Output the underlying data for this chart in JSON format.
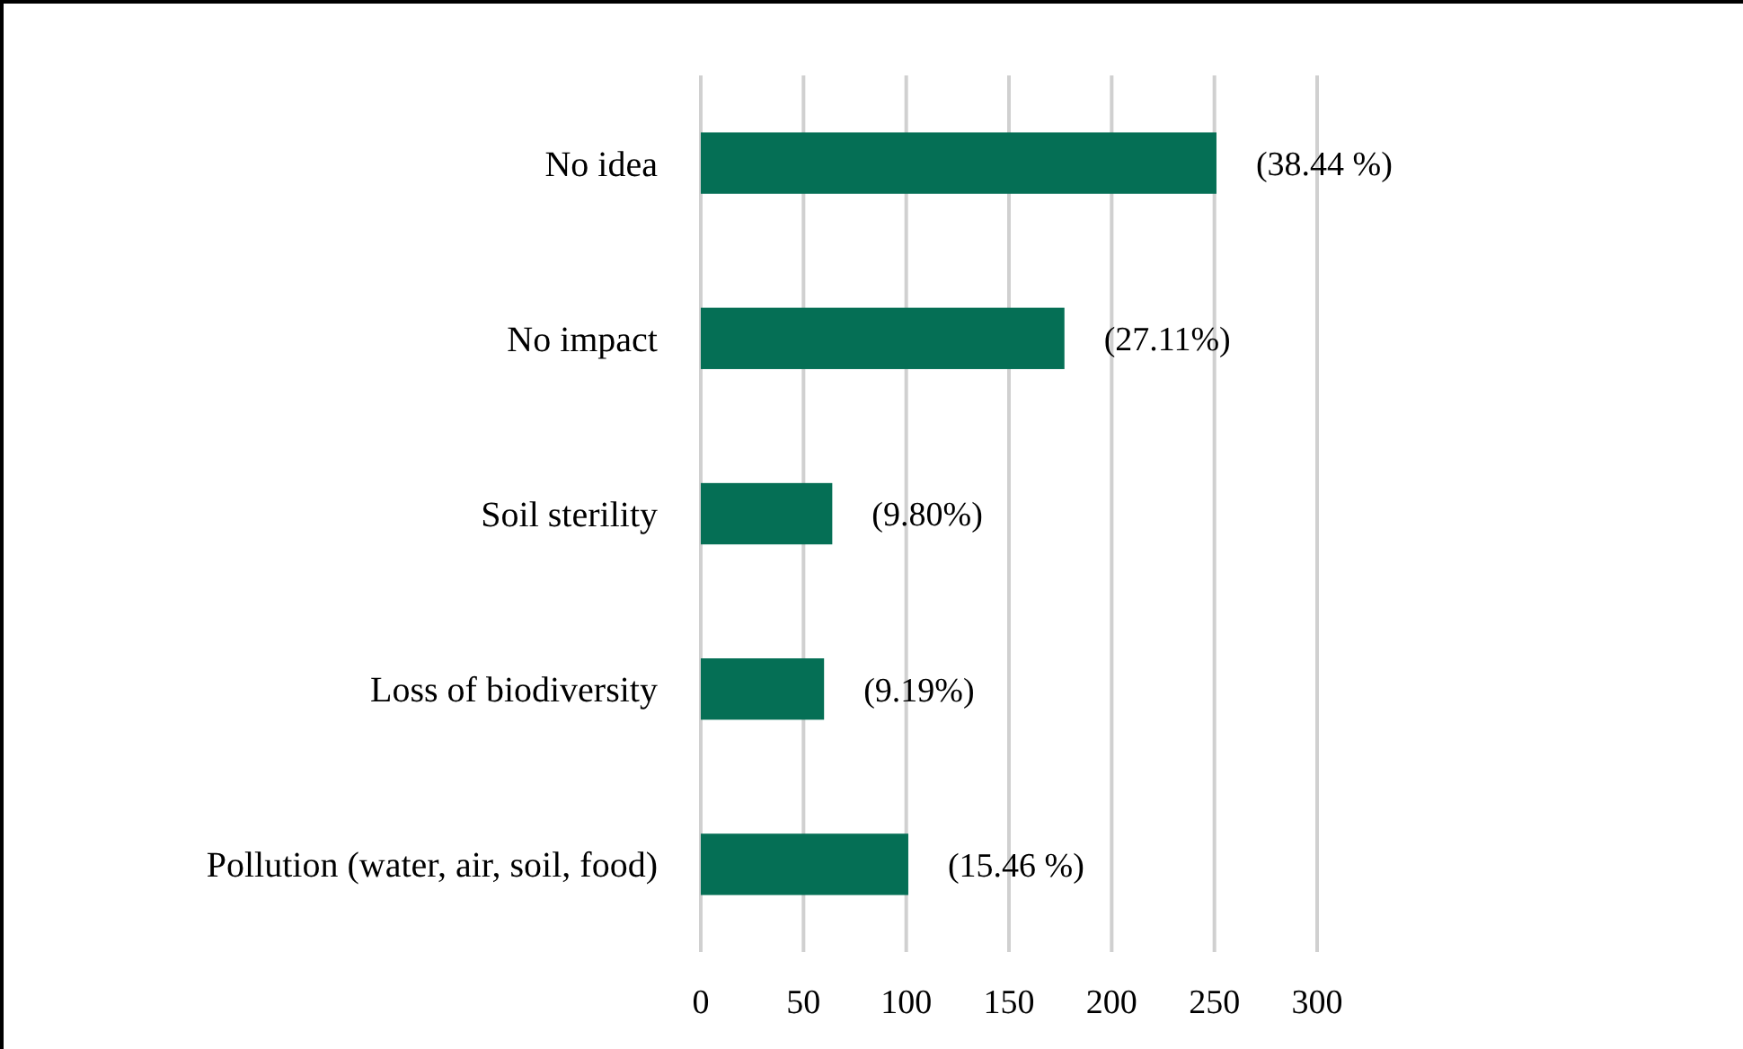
{
  "chart_data": {
    "type": "bar",
    "orientation": "horizontal",
    "categories": [
      "No idea",
      "No impact",
      "Soil sterility",
      "Loss of biodiversity",
      "Pollution (water, air, soil, food)"
    ],
    "values": [
      251,
      177,
      64,
      60,
      101
    ],
    "annotations": [
      {
        "text": "(38.44 %)",
        "x": 251,
        "y": "No idea"
      },
      {
        "text": "(27.11%)",
        "x": 177,
        "y": "No impact"
      },
      {
        "text": "(9.80%)",
        "x": 64,
        "y": "Soil sterility"
      },
      {
        "text": "(9.19%)",
        "x": 60,
        "y": "Loss of biodiversity"
      },
      {
        "text": "(15.46 %)",
        "x": 101,
        "y": "Pollution (water, air, soil, food)"
      }
    ],
    "color": "#056f55",
    "xlim": [
      0,
      300
    ],
    "xticks": [
      0,
      50,
      100,
      150,
      200,
      250,
      300
    ],
    "grid": "x"
  }
}
